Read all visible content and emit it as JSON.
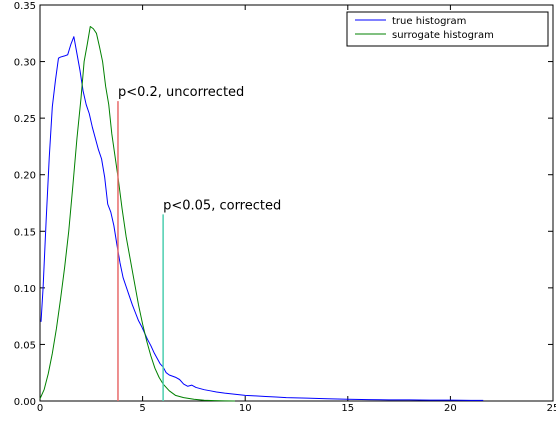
{
  "chart_data": {
    "type": "line",
    "title": "",
    "xlabel": "",
    "ylabel": "",
    "xlim": [
      0,
      25
    ],
    "ylim": [
      0,
      0.35
    ],
    "xticks": [
      0,
      5,
      10,
      15,
      20,
      25
    ],
    "yticks": [
      0.0,
      0.05,
      0.1,
      0.15,
      0.2,
      0.25,
      0.3,
      0.35
    ],
    "ytick_labels": [
      "0.00",
      "0.05",
      "0.10",
      "0.15",
      "0.20",
      "0.25",
      "0.30",
      "0.35"
    ],
    "xtick_labels": [
      "0",
      "5",
      "10",
      "15",
      "20",
      "25"
    ],
    "grid": false,
    "legend_position": "top-right",
    "series": [
      {
        "name": "true histogram",
        "color": "#0000ff",
        "points": [
          [
            0.05,
            0.07
          ],
          [
            0.15,
            0.1
          ],
          [
            0.3,
            0.16
          ],
          [
            0.45,
            0.215
          ],
          [
            0.6,
            0.26
          ],
          [
            0.75,
            0.283
          ],
          [
            0.9,
            0.303
          ],
          [
            1.0,
            0.304
          ],
          [
            1.2,
            0.305
          ],
          [
            1.35,
            0.306
          ],
          [
            1.5,
            0.315
          ],
          [
            1.65,
            0.322
          ],
          [
            1.8,
            0.307
          ],
          [
            1.95,
            0.292
          ],
          [
            2.1,
            0.274
          ],
          [
            2.25,
            0.262
          ],
          [
            2.4,
            0.254
          ],
          [
            2.55,
            0.242
          ],
          [
            2.7,
            0.232
          ],
          [
            2.85,
            0.222
          ],
          [
            3.0,
            0.214
          ],
          [
            3.15,
            0.198
          ],
          [
            3.3,
            0.174
          ],
          [
            3.45,
            0.167
          ],
          [
            3.6,
            0.155
          ],
          [
            3.75,
            0.138
          ],
          [
            3.9,
            0.122
          ],
          [
            4.05,
            0.109
          ],
          [
            4.2,
            0.101
          ],
          [
            4.35,
            0.093
          ],
          [
            4.5,
            0.085
          ],
          [
            4.65,
            0.078
          ],
          [
            4.8,
            0.071
          ],
          [
            4.95,
            0.066
          ],
          [
            5.1,
            0.06
          ],
          [
            5.25,
            0.054
          ],
          [
            5.4,
            0.049
          ],
          [
            5.55,
            0.043
          ],
          [
            5.7,
            0.038
          ],
          [
            5.85,
            0.033
          ],
          [
            6.0,
            0.03
          ],
          [
            6.15,
            0.025
          ],
          [
            6.3,
            0.023
          ],
          [
            6.45,
            0.022
          ],
          [
            6.6,
            0.021
          ],
          [
            6.8,
            0.019
          ],
          [
            7.0,
            0.015
          ],
          [
            7.2,
            0.013
          ],
          [
            7.4,
            0.014
          ],
          [
            7.6,
            0.012
          ],
          [
            7.8,
            0.011
          ],
          [
            8.0,
            0.01
          ],
          [
            8.3,
            0.009
          ],
          [
            8.6,
            0.008
          ],
          [
            9.0,
            0.007
          ],
          [
            9.5,
            0.006
          ],
          [
            10.0,
            0.005
          ],
          [
            10.5,
            0.0045
          ],
          [
            11.0,
            0.004
          ],
          [
            11.5,
            0.0035
          ],
          [
            12.0,
            0.003
          ],
          [
            13.0,
            0.0025
          ],
          [
            14.0,
            0.002
          ],
          [
            15.0,
            0.0015
          ],
          [
            16.0,
            0.0012
          ],
          [
            17.0,
            0.001
          ],
          [
            18.0,
            0.001
          ],
          [
            19.0,
            0.0008
          ],
          [
            20.0,
            0.0008
          ],
          [
            21.0,
            0.0005
          ],
          [
            21.6,
            0.0005
          ]
        ]
      },
      {
        "name": "surrogate histogram",
        "color": "#008000",
        "points": [
          [
            0.0,
            0.002
          ],
          [
            0.2,
            0.01
          ],
          [
            0.4,
            0.024
          ],
          [
            0.6,
            0.042
          ],
          [
            0.8,
            0.064
          ],
          [
            1.0,
            0.09
          ],
          [
            1.2,
            0.118
          ],
          [
            1.4,
            0.15
          ],
          [
            1.6,
            0.19
          ],
          [
            1.8,
            0.232
          ],
          [
            2.0,
            0.268
          ],
          [
            2.15,
            0.3
          ],
          [
            2.3,
            0.315
          ],
          [
            2.45,
            0.331
          ],
          [
            2.6,
            0.329
          ],
          [
            2.75,
            0.325
          ],
          [
            2.9,
            0.313
          ],
          [
            3.05,
            0.3
          ],
          [
            3.2,
            0.278
          ],
          [
            3.35,
            0.262
          ],
          [
            3.5,
            0.236
          ],
          [
            3.65,
            0.217
          ],
          [
            3.8,
            0.198
          ],
          [
            4.0,
            0.17
          ],
          [
            4.2,
            0.145
          ],
          [
            4.4,
            0.125
          ],
          [
            4.6,
            0.105
          ],
          [
            4.8,
            0.085
          ],
          [
            5.0,
            0.068
          ],
          [
            5.2,
            0.053
          ],
          [
            5.4,
            0.04
          ],
          [
            5.6,
            0.029
          ],
          [
            5.8,
            0.021
          ],
          [
            6.0,
            0.015
          ],
          [
            6.3,
            0.009
          ],
          [
            6.6,
            0.005
          ],
          [
            7.0,
            0.003
          ],
          [
            7.5,
            0.0015
          ],
          [
            8.0,
            0.0007
          ],
          [
            8.5,
            0.0003
          ],
          [
            9.0,
            0.0001
          ],
          [
            9.5,
            0.0
          ]
        ]
      }
    ],
    "thresholds": [
      {
        "x": 3.8,
        "y": 0.265,
        "color": "#e86a6a",
        "label": "p<0.2, uncorrected"
      },
      {
        "x": 6.0,
        "y": 0.165,
        "color": "#4ccfb0",
        "label": "p<0.05, corrected"
      }
    ]
  }
}
